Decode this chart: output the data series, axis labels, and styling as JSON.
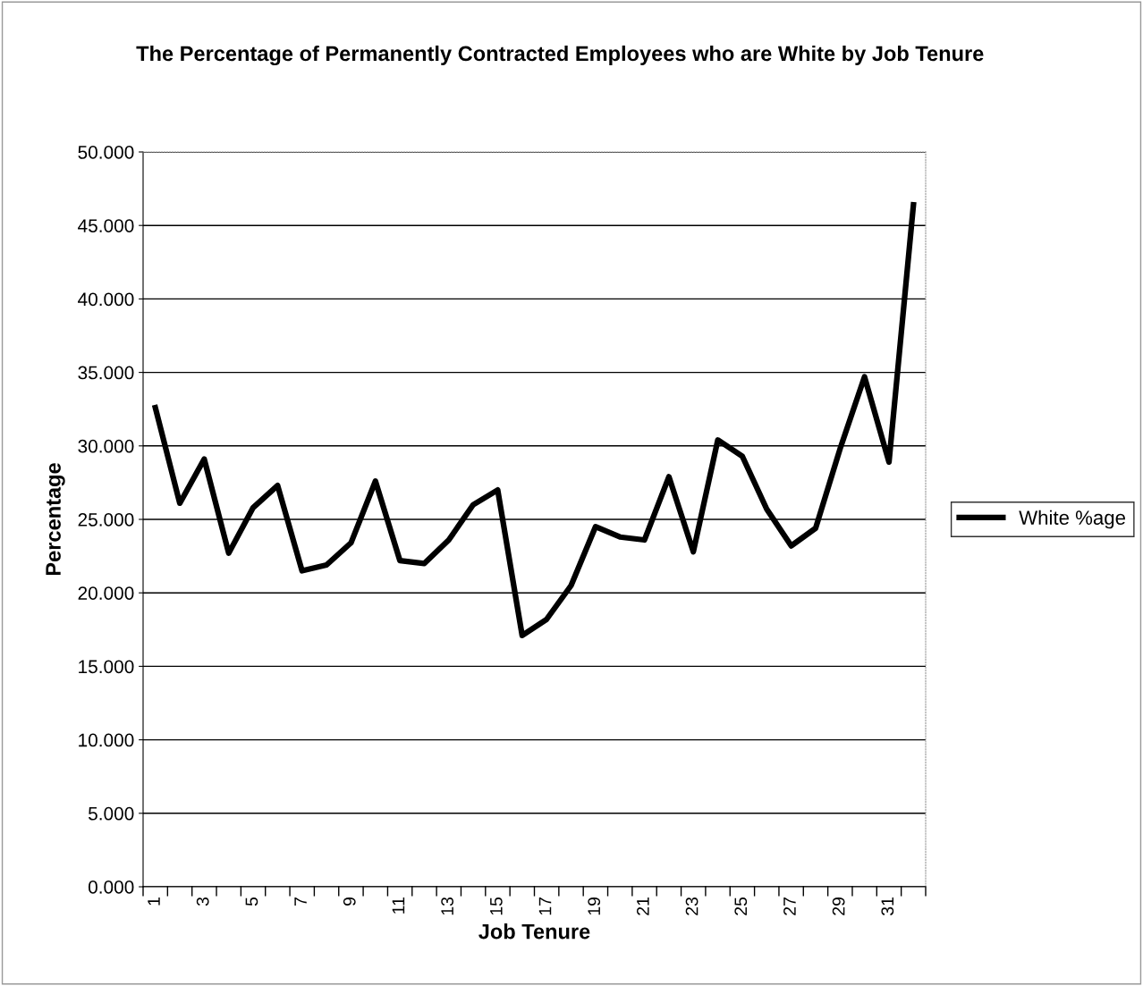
{
  "chart_data": {
    "type": "line",
    "title": "The Percentage of Permanently Contracted Employees who are White by Job Tenure",
    "xlabel": "Job Tenure",
    "ylabel": "Percentage",
    "categories": [
      "1",
      null,
      "3",
      null,
      "5",
      null,
      "7",
      null,
      "9",
      null,
      "11",
      null,
      "13",
      null,
      "15",
      null,
      "17",
      null,
      "19",
      null,
      "21",
      null,
      "23",
      null,
      "25",
      null,
      "27",
      null,
      "29",
      null,
      "31",
      null
    ],
    "series": [
      {
        "name": "White %age",
        "color": "#000000",
        "values": [
          32.6,
          26.1,
          29.1,
          22.7,
          25.8,
          27.3,
          21.5,
          21.9,
          23.4,
          27.6,
          22.2,
          22.0,
          23.6,
          26.0,
          27.0,
          17.1,
          18.2,
          20.5,
          24.5,
          23.8,
          23.6,
          27.9,
          22.8,
          30.4,
          29.3,
          25.7,
          23.2,
          24.4,
          29.8,
          34.7,
          28.9,
          46.4
        ]
      }
    ],
    "ylim": [
      0,
      50
    ],
    "yticks": [
      {
        "value": 0,
        "label": "0.000"
      },
      {
        "value": 5,
        "label": "5.000"
      },
      {
        "value": 10,
        "label": "10.000"
      },
      {
        "value": 15,
        "label": "15.000"
      },
      {
        "value": 20,
        "label": "20.000"
      },
      {
        "value": 25,
        "label": "25.000"
      },
      {
        "value": 30,
        "label": "30.000"
      },
      {
        "value": 35,
        "label": "35.000"
      },
      {
        "value": 40,
        "label": "40.000"
      },
      {
        "value": 45,
        "label": "45.000"
      },
      {
        "value": 50,
        "label": "50.000"
      }
    ],
    "grid": "y",
    "legend": "right",
    "marker": "none",
    "line_style": "solid"
  }
}
